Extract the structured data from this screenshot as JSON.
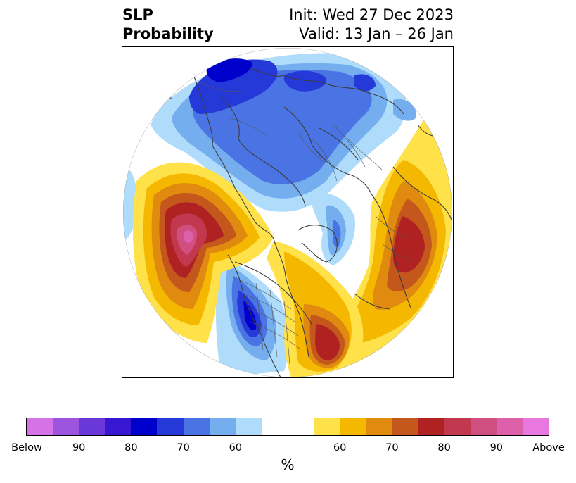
{
  "title": {
    "left_line1": "SLP",
    "left_line2": "Probability",
    "right_line1": "Init: Wed 27 Dec 2023",
    "right_line2": "Valid: 13 Jan – 26 Jan"
  },
  "colorbar": {
    "unit": "%",
    "colors": [
      "#d572e6",
      "#9d55e0",
      "#6a38d8",
      "#3817d2",
      "#0000cc",
      "#2439d8",
      "#4a73e3",
      "#74aeef",
      "#aedcfa",
      "#ffffff",
      "#ffffff",
      "#ffe14a",
      "#f5b800",
      "#e08a10",
      "#c4571c",
      "#b02222",
      "#c1384f",
      "#cf4f80",
      "#dd60aa",
      "#e877df"
    ],
    "ticks": [
      "Below",
      "90",
      "80",
      "70",
      "60",
      "60",
      "70",
      "80",
      "90",
      "Above"
    ]
  },
  "map": {
    "projection": "north-polar-stereographic",
    "variable": "sea-level-pressure-tercile-probability"
  }
}
